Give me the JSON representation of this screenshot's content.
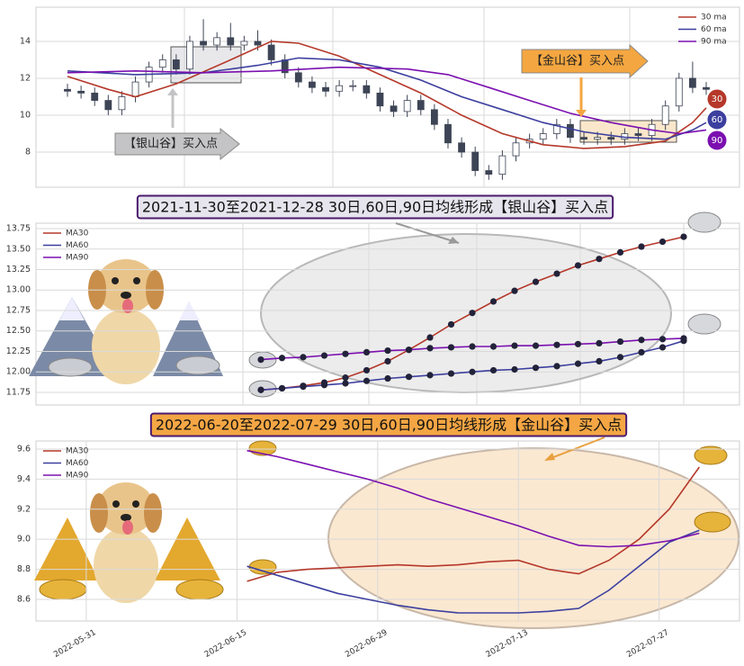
{
  "chart_data": [
    {
      "type": "candlestick",
      "open": [
        11.4,
        11.3,
        11.2,
        10.8,
        10.3,
        11.0,
        11.8,
        12.6,
        13.0,
        12.5,
        14.0,
        13.8,
        14.2,
        13.8,
        14.0,
        13.8,
        13.0,
        12.3,
        11.8,
        11.5,
        11.3,
        11.6,
        11.6,
        11.2,
        10.5,
        10.2,
        10.8,
        10.3,
        9.5,
        8.5,
        8.0,
        7.0,
        6.8,
        7.8,
        8.5,
        8.7,
        9.0,
        9.5,
        8.8,
        8.7,
        8.8,
        8.7,
        9.0,
        8.9,
        9.5,
        10.5,
        12.0,
        11.5
      ],
      "high": [
        11.7,
        11.6,
        11.5,
        11.1,
        11.3,
        12.1,
        12.9,
        13.3,
        13.3,
        14.3,
        15.2,
        14.5,
        15.0,
        14.3,
        14.6,
        14.1,
        13.3,
        12.6,
        12.1,
        11.8,
        11.9,
        11.9,
        11.9,
        11.5,
        10.8,
        11.1,
        11.1,
        10.6,
        9.8,
        8.8,
        8.3,
        7.3,
        8.1,
        8.8,
        9.0,
        9.3,
        9.8,
        9.8,
        9.1,
        9.1,
        9.1,
        9.3,
        9.3,
        9.8,
        10.8,
        12.3,
        12.9,
        11.8
      ],
      "low": [
        11.0,
        10.9,
        10.5,
        10.0,
        10.0,
        10.7,
        11.5,
        12.3,
        12.2,
        12.2,
        13.5,
        13.5,
        13.5,
        13.5,
        13.5,
        12.7,
        12.0,
        11.5,
        11.2,
        11.0,
        11.0,
        11.3,
        10.9,
        10.2,
        9.9,
        9.9,
        10.0,
        9.2,
        8.2,
        7.7,
        6.7,
        6.5,
        6.5,
        7.5,
        8.2,
        8.4,
        8.7,
        8.5,
        8.4,
        8.4,
        8.4,
        8.4,
        8.6,
        8.6,
        9.2,
        10.2,
        11.2,
        11.1
      ],
      "close": [
        11.3,
        11.2,
        10.8,
        10.3,
        11.0,
        11.8,
        12.6,
        13.0,
        12.5,
        14.0,
        13.8,
        14.2,
        13.8,
        14.0,
        13.8,
        13.0,
        12.3,
        11.8,
        11.5,
        11.3,
        11.6,
        11.6,
        11.2,
        10.5,
        10.2,
        10.8,
        10.3,
        9.5,
        8.5,
        8.0,
        7.0,
        6.8,
        7.8,
        8.5,
        8.7,
        9.0,
        9.5,
        8.8,
        8.7,
        8.8,
        8.7,
        9.0,
        8.9,
        9.5,
        10.5,
        12.0,
        11.5,
        11.4
      ],
      "up_color": "#ffffff",
      "down_color": "#3d4455",
      "ylim": [
        6.1,
        15.85
      ],
      "yticks": [
        8,
        10,
        12,
        14
      ],
      "grid": true,
      "legend": "upper right",
      "series": [
        {
          "name": "30 ma",
          "color": "#b5382a",
          "end_label": "30",
          "x": [
            0,
            3,
            5,
            8,
            12,
            15,
            17,
            20,
            23,
            26,
            29,
            32,
            35,
            38,
            41,
            44,
            46,
            47
          ],
          "values": [
            12.1,
            11.4,
            11.0,
            11.7,
            13.0,
            14.0,
            13.9,
            13.2,
            12.2,
            11.2,
            10.0,
            9.0,
            8.4,
            8.2,
            8.3,
            8.6,
            9.6,
            10.4
          ]
        },
        {
          "name": "60 ma",
          "color": "#3c3f9e",
          "end_label": "60",
          "x": [
            0,
            5,
            10,
            14,
            17,
            20,
            23,
            26,
            29,
            32,
            35,
            38,
            41,
            44,
            46,
            47
          ],
          "values": [
            12.4,
            12.2,
            12.3,
            12.7,
            13.1,
            13.0,
            12.6,
            11.9,
            11.0,
            10.3,
            9.6,
            9.1,
            8.8,
            8.7,
            9.2,
            9.6
          ]
        },
        {
          "name": "90 ma",
          "color": "#7b10b0",
          "end_label": "90",
          "x": [
            0,
            5,
            10,
            15,
            20,
            25,
            28,
            31,
            34,
            37,
            40,
            43,
            45,
            47
          ],
          "values": [
            12.3,
            12.4,
            12.3,
            12.4,
            12.6,
            12.5,
            12.2,
            11.5,
            10.8,
            10.1,
            9.6,
            9.2,
            9.0,
            9.2
          ]
        }
      ],
      "annotations": [
        {
          "text": "【银山谷】买入点",
          "color": "#c4c4c6"
        },
        {
          "text": "【金山谷】买入点",
          "color": "#f4a640"
        }
      ]
    },
    {
      "type": "line",
      "title": "2021-11-30至2021-12-28 30日,60日,90日均线形成【银山谷】买入点",
      "ylim": [
        11.596,
        13.816
      ],
      "yticks": [
        11.75,
        {
          "value": 12,
          "label": "12.00"
        },
        12.25,
        {
          "value": 12.5,
          "label": "12.50"
        },
        12.75,
        {
          "value": 13,
          "label": "13.00"
        },
        13.25,
        {
          "value": 13.5,
          "label": "13.50"
        },
        13.75
      ],
      "grid": true,
      "legend": "upper left",
      "markers": true,
      "marker_color": "#22223a",
      "series": [
        {
          "name": "MA30",
          "color": "#b5382a",
          "values": [
            11.78,
            11.8,
            11.83,
            11.87,
            11.93,
            12.02,
            12.13,
            12.27,
            12.42,
            12.58,
            12.72,
            12.86,
            12.99,
            13.1,
            13.2,
            13.3,
            13.38,
            13.46,
            13.53,
            13.59,
            13.65
          ]
        },
        {
          "name": "MA60",
          "color": "#3c3f9e",
          "values": [
            11.78,
            11.8,
            11.82,
            11.84,
            11.86,
            11.89,
            11.92,
            11.94,
            11.96,
            11.98,
            12.0,
            12.02,
            12.03,
            12.05,
            12.07,
            12.1,
            12.13,
            12.18,
            12.24,
            12.3,
            12.38
          ]
        },
        {
          "name": "MA90",
          "color": "#7b10b0",
          "values": [
            12.15,
            12.17,
            12.18,
            12.2,
            12.22,
            12.24,
            12.26,
            12.27,
            12.29,
            12.3,
            12.31,
            12.31,
            12.32,
            12.32,
            12.33,
            12.34,
            12.35,
            12.37,
            12.39,
            12.4,
            12.41
          ]
        }
      ]
    },
    {
      "type": "line",
      "title": "2022-06-20至2022-07-29 30日,60日,90日均线形成【金山谷】买入点",
      "x": [
        "2022-06-16",
        "2022-06-19",
        "2022-06-22",
        "2022-06-25",
        "2022-06-28",
        "2022-07-01",
        "2022-07-04",
        "2022-07-07",
        "2022-07-10",
        "2022-07-13",
        "2022-07-16",
        "2022-07-19",
        "2022-07-22",
        "2022-07-25",
        "2022-07-28",
        "2022-07-31"
      ],
      "xlim": [
        "2022-05-26",
        "2022-08-04"
      ],
      "xticks": [
        "2022-05-31",
        "2022-06-15",
        "2022-06-29",
        "2022-07-13",
        "2022-07-27"
      ],
      "ylim": [
        8.456,
        9.654
      ],
      "yticks": [
        8.6,
        8.8,
        {
          "value": 9,
          "label": "9.0"
        },
        9.2,
        9.4,
        9.6
      ],
      "grid": true,
      "legend": "upper left",
      "markers": false,
      "series": [
        {
          "name": "MA30",
          "color": "#b5382a",
          "values": [
            8.72,
            8.78,
            8.8,
            8.81,
            8.82,
            8.83,
            8.82,
            8.83,
            8.85,
            8.86,
            8.8,
            8.77,
            8.86,
            9.0,
            9.2,
            9.48
          ]
        },
        {
          "name": "MA60",
          "color": "#3c3f9e",
          "values": [
            8.82,
            8.76,
            8.7,
            8.64,
            8.6,
            8.56,
            8.53,
            8.51,
            8.51,
            8.51,
            8.52,
            8.54,
            8.66,
            8.82,
            8.98,
            9.06
          ]
        },
        {
          "name": "MA90",
          "color": "#7b10b0",
          "values": [
            9.59,
            9.55,
            9.5,
            9.45,
            9.4,
            9.34,
            9.27,
            9.21,
            9.15,
            9.09,
            9.02,
            8.96,
            8.95,
            8.96,
            8.99,
            9.04
          ]
        }
      ]
    }
  ]
}
